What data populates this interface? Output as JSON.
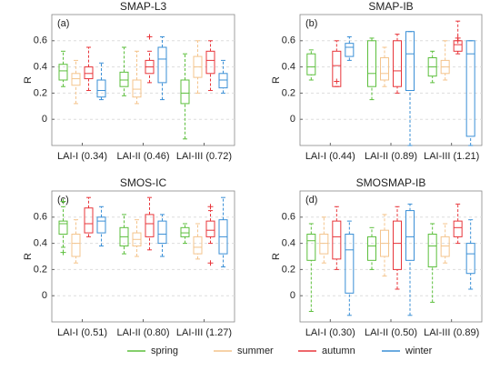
{
  "legend": {
    "entries": [
      {
        "name": "spring",
        "color": "#5cbf3c"
      },
      {
        "name": "summer",
        "color": "#f4c48c"
      },
      {
        "name": "autumn",
        "color": "#e8353a"
      },
      {
        "name": "winter",
        "color": "#3a8fd6"
      }
    ]
  },
  "chart_data": [
    {
      "type": "box",
      "title": "SMAP-L3",
      "panel_label": "(a)",
      "y_label": "R",
      "categories": [
        "LAI-I (0.34)",
        "LAI-II (0.46)",
        "LAI-III (0.72)"
      ],
      "ylim": [
        -0.2,
        0.8
      ],
      "yticks": [
        0,
        0.2,
        0.4,
        0.6
      ],
      "grid": true,
      "series": [
        {
          "values": [
            {
              "min": 0.25,
              "q1": 0.3,
              "median": 0.37,
              "q3": 0.42,
              "max": 0.52,
              "outliers": []
            },
            {
              "min": 0.18,
              "q1": 0.25,
              "median": 0.3,
              "q3": 0.36,
              "max": 0.55,
              "outliers": []
            },
            {
              "min": -0.15,
              "q1": 0.12,
              "median": 0.2,
              "q3": 0.3,
              "max": 0.5,
              "outliers": []
            }
          ]
        },
        {
          "values": [
            {
              "min": 0.12,
              "q1": 0.26,
              "median": 0.31,
              "q3": 0.35,
              "max": 0.45,
              "outliers": []
            },
            {
              "min": 0.12,
              "q1": 0.17,
              "median": 0.23,
              "q3": 0.3,
              "max": 0.52,
              "outliers": []
            },
            {
              "min": 0.2,
              "q1": 0.32,
              "median": 0.4,
              "q3": 0.48,
              "max": 0.6,
              "outliers": []
            }
          ]
        },
        {
          "values": [
            {
              "min": 0.22,
              "q1": 0.31,
              "median": 0.35,
              "q3": 0.4,
              "max": 0.55,
              "outliers": []
            },
            {
              "min": 0.28,
              "q1": 0.35,
              "median": 0.4,
              "q3": 0.45,
              "max": 0.52,
              "outliers": [
                0.63
              ]
            },
            {
              "min": 0.22,
              "q1": 0.35,
              "median": 0.45,
              "q3": 0.52,
              "max": 0.6,
              "outliers": []
            }
          ]
        },
        {
          "values": [
            {
              "min": 0.15,
              "q1": 0.17,
              "median": 0.22,
              "q3": 0.3,
              "max": 0.43,
              "outliers": []
            },
            {
              "min": 0.15,
              "q1": 0.28,
              "median": 0.46,
              "q3": 0.55,
              "max": 0.63,
              "outliers": []
            },
            {
              "min": 0.2,
              "q1": 0.24,
              "median": 0.3,
              "q3": 0.35,
              "max": 0.45,
              "outliers": []
            }
          ]
        }
      ]
    },
    {
      "type": "box",
      "title": "SMAP-IB",
      "panel_label": "(b)",
      "y_label": "R",
      "categories": [
        "LAI-I (0.44)",
        "LAI-II (0.89)",
        "LAI-III (1.21)"
      ],
      "ylim": [
        -0.2,
        0.8
      ],
      "yticks": [
        0,
        0.2,
        0.4,
        0.6
      ],
      "grid": true,
      "series": [
        {
          "values": [
            {
              "min": 0.3,
              "q1": 0.34,
              "median": 0.4,
              "q3": 0.5,
              "max": 0.53,
              "outliers": []
            },
            {
              "min": 0.15,
              "q1": 0.25,
              "median": 0.35,
              "q3": 0.6,
              "max": 0.62,
              "outliers": []
            },
            {
              "min": 0.28,
              "q1": 0.33,
              "median": 0.4,
              "q3": 0.47,
              "max": 0.52,
              "outliers": []
            }
          ]
        },
        {
          "values": [
            null,
            {
              "min": 0.25,
              "q1": 0.3,
              "median": 0.35,
              "q3": 0.47,
              "max": 0.55,
              "outliers": []
            },
            {
              "min": 0.3,
              "q1": 0.35,
              "median": 0.4,
              "q3": 0.45,
              "max": 0.6,
              "outliers": []
            }
          ]
        },
        {
          "values": [
            {
              "min": 0.25,
              "q1": 0.25,
              "median": 0.41,
              "q3": 0.52,
              "max": 0.6,
              "outliers": [
                0.29
              ]
            },
            {
              "min": 0.2,
              "q1": 0.25,
              "median": 0.37,
              "q3": 0.6,
              "max": 0.65,
              "outliers": []
            },
            {
              "min": 0.5,
              "q1": 0.52,
              "median": 0.57,
              "q3": 0.6,
              "max": 0.75,
              "outliers": [
                0.62,
                0.6
              ]
            }
          ]
        },
        {
          "values": [
            {
              "min": 0.45,
              "q1": 0.48,
              "median": 0.55,
              "q3": 0.58,
              "max": 0.63,
              "outliers": []
            },
            {
              "min": -0.2,
              "q1": 0.22,
              "median": 0.5,
              "q3": 0.67,
              "max": 0.67,
              "outliers": []
            },
            {
              "min": -0.2,
              "q1": -0.13,
              "median": 0.5,
              "q3": 0.6,
              "max": 0.6,
              "outliers": []
            }
          ]
        }
      ]
    },
    {
      "type": "box",
      "title": "SMOS-IC",
      "panel_label": "(c)",
      "y_label": "R",
      "categories": [
        "LAI-I (0.51)",
        "LAI-II (0.80)",
        "LAI-III (1.27)"
      ],
      "ylim": [
        -0.2,
        0.8
      ],
      "yticks": [
        0,
        0.2,
        0.4,
        0.6
      ],
      "grid": true,
      "series": [
        {
          "values": [
            {
              "min": 0.37,
              "q1": 0.47,
              "median": 0.55,
              "q3": 0.57,
              "max": 0.68,
              "outliers": [
                0.72,
                0.33
              ]
            },
            {
              "min": 0.32,
              "q1": 0.38,
              "median": 0.45,
              "q3": 0.52,
              "max": 0.62,
              "outliers": []
            },
            {
              "min": 0.4,
              "q1": 0.45,
              "median": 0.48,
              "q3": 0.52,
              "max": 0.55,
              "outliers": []
            }
          ]
        },
        {
          "values": [
            {
              "min": 0.25,
              "q1": 0.3,
              "median": 0.4,
              "q3": 0.47,
              "max": 0.58,
              "outliers": []
            },
            {
              "min": 0.3,
              "q1": 0.38,
              "median": 0.43,
              "q3": 0.48,
              "max": 0.58,
              "outliers": []
            },
            {
              "min": 0.28,
              "q1": 0.32,
              "median": 0.37,
              "q3": 0.45,
              "max": 0.55,
              "outliers": []
            }
          ]
        },
        {
          "values": [
            {
              "min": 0.45,
              "q1": 0.48,
              "median": 0.55,
              "q3": 0.67,
              "max": 0.75,
              "outliers": []
            },
            {
              "min": 0.35,
              "q1": 0.45,
              "median": 0.55,
              "q3": 0.62,
              "max": 0.75,
              "outliers": []
            },
            {
              "min": 0.4,
              "q1": 0.45,
              "median": 0.5,
              "q3": 0.57,
              "max": 0.65,
              "outliers": [
                0.68,
                0.25
              ]
            }
          ]
        },
        {
          "values": [
            {
              "min": 0.38,
              "q1": 0.48,
              "median": 0.57,
              "q3": 0.6,
              "max": 0.68,
              "outliers": []
            },
            {
              "min": 0.3,
              "q1": 0.4,
              "median": 0.47,
              "q3": 0.57,
              "max": 0.62,
              "outliers": []
            },
            {
              "min": 0.22,
              "q1": 0.32,
              "median": 0.45,
              "q3": 0.58,
              "max": 0.75,
              "outliers": []
            }
          ]
        }
      ]
    },
    {
      "type": "box",
      "title": "SMOSMAP-IB",
      "panel_label": "(d)",
      "y_label": "R",
      "categories": [
        "LAI-I (0.30)",
        "LAI-II (0.50)",
        "LAI-III (0.89)"
      ],
      "ylim": [
        -0.2,
        0.8
      ],
      "yticks": [
        0,
        0.2,
        0.4,
        0.6
      ],
      "grid": true,
      "series": [
        {
          "values": [
            {
              "min": -0.12,
              "q1": 0.27,
              "median": 0.42,
              "q3": 0.47,
              "max": 0.55,
              "outliers": []
            },
            {
              "min": 0.2,
              "q1": 0.27,
              "median": 0.38,
              "q3": 0.45,
              "max": 0.52,
              "outliers": []
            },
            {
              "min": -0.05,
              "q1": 0.22,
              "median": 0.38,
              "q3": 0.47,
              "max": 0.55,
              "outliers": []
            }
          ]
        },
        {
          "values": [
            {
              "min": 0.25,
              "q1": 0.32,
              "median": 0.4,
              "q3": 0.47,
              "max": 0.6,
              "outliers": []
            },
            {
              "min": 0.15,
              "q1": 0.3,
              "median": 0.4,
              "q3": 0.5,
              "max": 0.62,
              "outliers": []
            },
            {
              "min": 0.25,
              "q1": 0.3,
              "median": 0.38,
              "q3": 0.45,
              "max": 0.55,
              "outliers": []
            }
          ]
        },
        {
          "values": [
            {
              "min": 0.2,
              "q1": 0.28,
              "median": 0.45,
              "q3": 0.57,
              "max": 0.68,
              "outliers": []
            },
            {
              "min": 0.05,
              "q1": 0.2,
              "median": 0.4,
              "q3": 0.57,
              "max": 0.68,
              "outliers": []
            },
            {
              "min": 0.4,
              "q1": 0.45,
              "median": 0.52,
              "q3": 0.57,
              "max": 0.7,
              "outliers": []
            }
          ]
        },
        {
          "values": [
            {
              "min": -0.15,
              "q1": 0.02,
              "median": 0.35,
              "q3": 0.47,
              "max": 0.57,
              "outliers": []
            },
            {
              "min": -0.15,
              "q1": 0.27,
              "median": 0.45,
              "q3": 0.65,
              "max": 0.7,
              "outliers": []
            },
            {
              "min": 0.05,
              "q1": 0.17,
              "median": 0.32,
              "q3": 0.4,
              "max": 0.58,
              "outliers": []
            }
          ]
        }
      ]
    }
  ]
}
